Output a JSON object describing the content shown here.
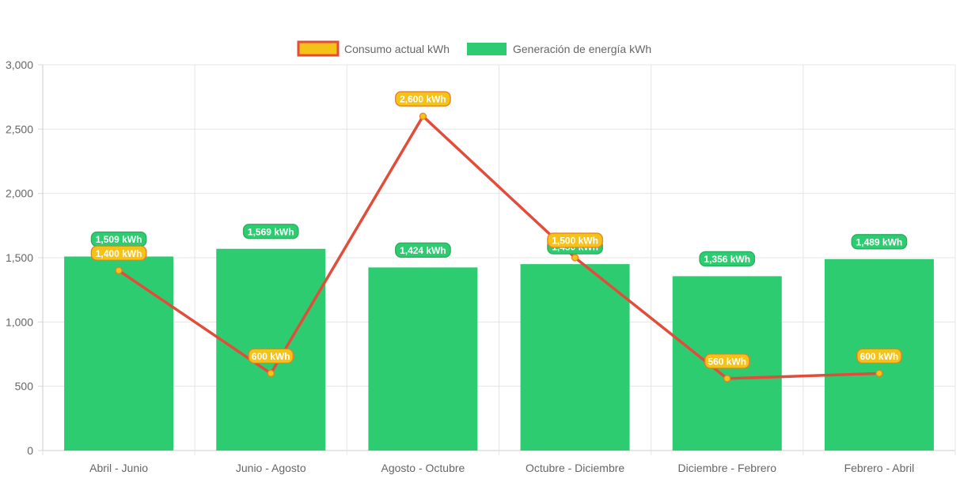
{
  "chart_data": {
    "type": "bar",
    "categories": [
      "Abril - Junio",
      "Junio - Agosto",
      "Agosto - Octubre",
      "Octubre - Diciembre",
      "Diciembre - Febrero",
      "Febrero - Abril"
    ],
    "series": [
      {
        "name": "Consumo actual kWh",
        "type": "line",
        "values": [
          1400,
          600,
          2600,
          1500,
          560,
          600
        ],
        "labels": [
          "1,400 kWh",
          "600 kWh",
          "2,600 kWh",
          "1,500 kWh",
          "560 kWh",
          "600 kWh"
        ],
        "color": "#e24c3a",
        "label_color": "#f5c218",
        "label_border": "#e67e22"
      },
      {
        "name": "Generación de energía kWh",
        "type": "bar",
        "values": [
          1509,
          1569,
          1424,
          1450,
          1356,
          1489
        ],
        "labels": [
          "1,509 kWh",
          "1,569 kWh",
          "1,424 kWh",
          "1,450 kWh",
          "1,356 kWh",
          "1,489 kWh"
        ],
        "color": "#2ecc71"
      }
    ],
    "ylim": [
      0,
      3000
    ],
    "yticks": [
      "0",
      "500",
      "1,000",
      "1,500",
      "2,000",
      "2,500",
      "3,000"
    ],
    "grid": true,
    "legend": "top-center"
  }
}
